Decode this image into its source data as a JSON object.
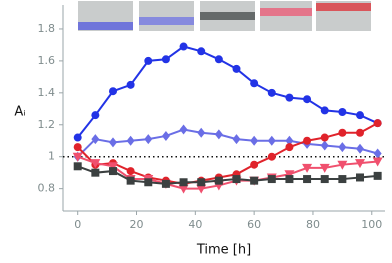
{
  "chart_data": {
    "type": "line",
    "x_label": "Time [h]",
    "y_label": "Aᵢ",
    "x": [
      0,
      6,
      12,
      18,
      24,
      30,
      36,
      42,
      48,
      54,
      60,
      66,
      72,
      78,
      84,
      90,
      96,
      102
    ],
    "series": [
      {
        "color": "#2233e6",
        "marker": "circle",
        "values": [
          1.12,
          1.26,
          1.41,
          1.45,
          1.6,
          1.61,
          1.69,
          1.66,
          1.61,
          1.55,
          1.46,
          1.4,
          1.37,
          1.36,
          1.29,
          1.28,
          1.26,
          1.21
        ]
      },
      {
        "color": "#6a6ee6",
        "marker": "diamond",
        "values": [
          1.0,
          1.11,
          1.09,
          1.1,
          1.11,
          1.13,
          1.17,
          1.15,
          1.14,
          1.11,
          1.1,
          1.1,
          1.1,
          1.08,
          1.07,
          1.06,
          1.05,
          1.02
        ]
      },
      {
        "color": "#e0232b",
        "marker": "circle",
        "values": [
          1.06,
          0.95,
          0.96,
          0.91,
          0.87,
          0.85,
          0.83,
          0.85,
          0.87,
          0.89,
          0.95,
          1.0,
          1.06,
          1.1,
          1.12,
          1.15,
          1.15,
          1.21
        ]
      },
      {
        "color": "#f0506e",
        "marker": "triangle-down",
        "values": [
          1.0,
          0.96,
          0.94,
          0.86,
          0.86,
          0.83,
          0.8,
          0.8,
          0.82,
          0.85,
          0.85,
          0.87,
          0.89,
          0.93,
          0.93,
          0.95,
          0.96,
          0.97
        ]
      },
      {
        "color": "#3b4040",
        "marker": "square",
        "values": [
          0.94,
          0.9,
          0.91,
          0.85,
          0.84,
          0.83,
          0.84,
          0.84,
          0.85,
          0.86,
          0.85,
          0.86,
          0.86,
          0.86,
          0.86,
          0.86,
          0.87,
          0.88
        ]
      }
    ],
    "reference_line": 1,
    "xlim": [
      -5,
      104.5
    ],
    "ylim": [
      0.66,
      1.95
    ],
    "xticks": [
      0,
      20,
      40,
      60,
      80,
      100
    ],
    "yticks": [
      0.8,
      1,
      1.2,
      1.4,
      1.6,
      1.8
    ]
  }
}
